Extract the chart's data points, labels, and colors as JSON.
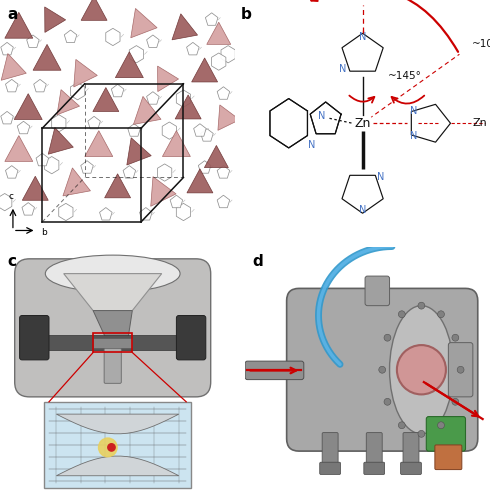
{
  "figsize": [
    4.9,
    4.93
  ],
  "dpi": 100,
  "background_color": "#ffffff",
  "panel_positions": {
    "a": [
      0.0,
      0.5,
      0.48,
      0.5
    ],
    "b": [
      0.48,
      0.5,
      0.52,
      0.5
    ],
    "c": [
      0.0,
      0.0,
      0.5,
      0.5
    ],
    "d": [
      0.5,
      0.0,
      0.5,
      0.5
    ]
  },
  "label_fontsize": 11,
  "n_color": "#4472c4",
  "arrow_color": "#cc0000",
  "zn_color": "#000000"
}
